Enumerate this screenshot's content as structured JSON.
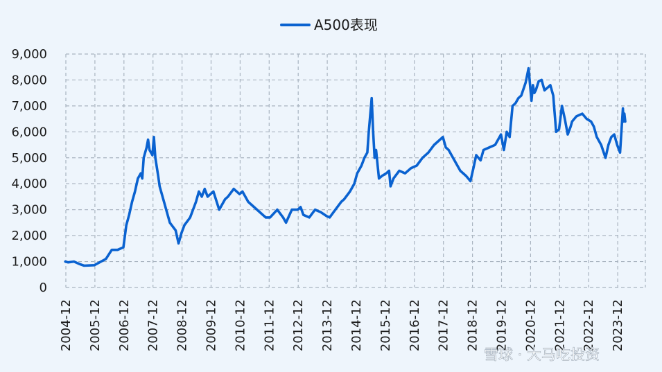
{
  "chart_data": {
    "type": "line",
    "title": "",
    "xlabel": "",
    "ylabel": "",
    "ylim": [
      0,
      9000
    ],
    "yticks": [
      0,
      1000,
      2000,
      3000,
      4000,
      5000,
      6000,
      7000,
      8000,
      9000
    ],
    "ytick_labels": [
      "0",
      "1,000",
      "2,000",
      "3,000",
      "4,000",
      "5,000",
      "6,000",
      "7,000",
      "8,000",
      "9,000"
    ],
    "xticks": [
      "2004-12",
      "2005-12",
      "2006-12",
      "2007-12",
      "2008-12",
      "2009-12",
      "2010-12",
      "2011-12",
      "2012-12",
      "2013-12",
      "2014-12",
      "2015-12",
      "2016-12",
      "2017-12",
      "2018-12",
      "2019-12",
      "2020-12",
      "2021-12",
      "2022-12",
      "2023-12"
    ],
    "x_range": [
      2004.9,
      2024.2
    ],
    "grid": true,
    "legend_position": "top-center",
    "series_color": "#0a62d0",
    "series": [
      {
        "name": "A500表现",
        "x": [
          2004.9,
          2005.0,
          2005.2,
          2005.4,
          2005.55,
          2005.7,
          2005.9,
          2006.1,
          2006.3,
          2006.5,
          2006.7,
          2006.9,
          2007.0,
          2007.1,
          2007.2,
          2007.3,
          2007.4,
          2007.45,
          2007.5,
          2007.55,
          2007.6,
          2007.7,
          2007.75,
          2007.8,
          2007.9,
          2007.95,
          2008.0,
          2008.1,
          2008.15,
          2008.3,
          2008.5,
          2008.7,
          2008.8,
          2008.85,
          2008.9,
          2009.0,
          2009.2,
          2009.4,
          2009.5,
          2009.6,
          2009.7,
          2009.8,
          2009.9,
          2010.0,
          2010.2,
          2010.4,
          2010.5,
          2010.7,
          2010.9,
          2011.0,
          2011.2,
          2011.4,
          2011.6,
          2011.8,
          2011.95,
          2012.2,
          2012.4,
          2012.5,
          2012.7,
          2012.9,
          2013.0,
          2013.1,
          2013.3,
          2013.5,
          2013.7,
          2013.9,
          2014.0,
          2014.2,
          2014.4,
          2014.5,
          2014.7,
          2014.85,
          2014.95,
          2015.1,
          2015.2,
          2015.3,
          2015.35,
          2015.45,
          2015.5,
          2015.55,
          2015.6,
          2015.7,
          2015.8,
          2015.95,
          2016.05,
          2016.1,
          2016.2,
          2016.4,
          2016.6,
          2016.8,
          2017.0,
          2017.2,
          2017.4,
          2017.6,
          2017.8,
          2017.9,
          2018.0,
          2018.1,
          2018.3,
          2018.5,
          2018.7,
          2018.85,
          2018.95,
          2019.05,
          2019.2,
          2019.3,
          2019.5,
          2019.7,
          2019.8,
          2019.9,
          2020.0,
          2020.1,
          2020.2,
          2020.3,
          2020.4,
          2020.5,
          2020.6,
          2020.75,
          2020.85,
          2020.95,
          2021.0,
          2021.05,
          2021.1,
          2021.2,
          2021.3,
          2021.4,
          2021.5,
          2021.6,
          2021.7,
          2021.8,
          2021.9,
          2022.0,
          2022.1,
          2022.2,
          2022.3,
          2022.35,
          2022.5,
          2022.7,
          2022.85,
          2023.0,
          2023.1,
          2023.2,
          2023.35,
          2023.5,
          2023.6,
          2023.7,
          2023.8,
          2023.9,
          2024.0,
          2024.1,
          2024.12,
          2024.15,
          2024.18
        ],
        "values": [
          1000,
          970,
          1000,
          900,
          840,
          850,
          860,
          980,
          1100,
          1450,
          1450,
          1550,
          2400,
          2800,
          3300,
          3700,
          4200,
          4300,
          4400,
          4200,
          5000,
          5400,
          5700,
          5300,
          5100,
          5800,
          5000,
          4300,
          3900,
          3300,
          2500,
          2200,
          1700,
          1900,
          2100,
          2400,
          2700,
          3300,
          3700,
          3500,
          3800,
          3500,
          3600,
          3700,
          3000,
          3400,
          3500,
          3800,
          3600,
          3700,
          3300,
          3100,
          2900,
          2700,
          2700,
          3000,
          2700,
          2500,
          3000,
          3000,
          3100,
          2800,
          2700,
          3000,
          2900,
          2750,
          2700,
          3000,
          3300,
          3400,
          3700,
          4000,
          4400,
          4700,
          5000,
          5200,
          6000,
          7300,
          6000,
          5000,
          5300,
          4200,
          4300,
          4400,
          4500,
          3900,
          4200,
          4500,
          4400,
          4600,
          4700,
          5000,
          5200,
          5500,
          5700,
          5800,
          5400,
          5300,
          4900,
          4500,
          4300,
          4100,
          4600,
          5100,
          4900,
          5300,
          5400,
          5500,
          5700,
          5900,
          5300,
          6000,
          5800,
          7000,
          7100,
          7300,
          7400,
          7900,
          8450,
          7200,
          7800,
          7500,
          7600,
          7950,
          8000,
          7600,
          7700,
          7800,
          7400,
          6000,
          6100,
          7000,
          6500,
          5900,
          6200,
          6400,
          6600,
          6700,
          6500,
          6400,
          6200,
          5800,
          5500,
          5000,
          5500,
          5800,
          5900,
          5500,
          5200,
          6900,
          6400,
          6700,
          6400
        ]
      }
    ]
  },
  "watermark": "雪球 · 大马吃投资"
}
